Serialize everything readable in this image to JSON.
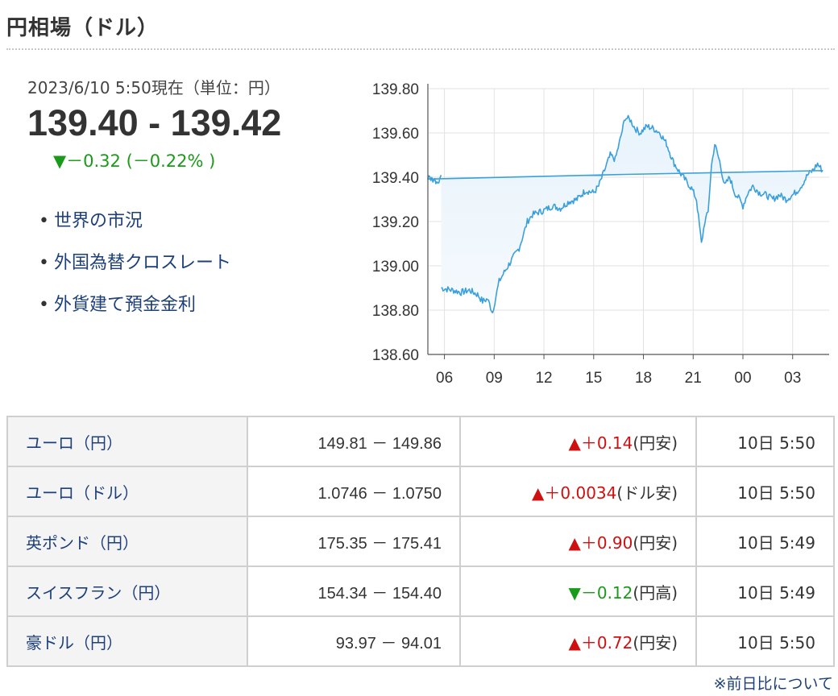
{
  "header": {
    "title": "円相場（ドル）"
  },
  "quote": {
    "as_of": "2023/6/10 5:50現在（単位：円）",
    "price": "139.40 - 139.42",
    "change": "▼－0.32 (－0.22% )",
    "change_color": "#1a9a1a"
  },
  "links": [
    {
      "label": "世界の市況"
    },
    {
      "label": "外国為替クロスレート"
    },
    {
      "label": "外貨建て預金金利"
    }
  ],
  "chart_data": {
    "type": "area",
    "title": "",
    "xlabel": "",
    "ylabel": "",
    "ylim": [
      138.6,
      139.8
    ],
    "yticks": [
      "139.80",
      "139.60",
      "139.40",
      "139.20",
      "139.00",
      "138.80",
      "138.60"
    ],
    "xticks": [
      "06",
      "09",
      "12",
      "15",
      "18",
      "21",
      "00",
      "03"
    ],
    "grid": true,
    "line_color": "#3aa0dc",
    "series": [
      {
        "x": [
          5.8,
          6.5,
          7.0,
          7.5,
          8.0,
          8.3,
          8.6,
          8.9,
          9.1,
          9.3,
          9.6,
          10.0,
          10.5,
          10.8,
          11.0,
          11.3,
          11.6,
          12.0,
          12.5,
          13.0,
          13.5,
          14.0,
          14.5,
          15.0,
          15.3,
          15.6,
          16.0,
          16.3,
          16.6,
          16.9,
          17.2,
          17.5,
          17.8,
          18.2,
          18.6,
          19.0,
          19.4,
          19.8,
          20.2,
          20.6,
          20.9,
          21.2,
          21.5,
          21.7,
          21.9,
          22.1,
          22.3,
          22.6,
          22.9,
          23.2,
          23.5,
          23.8,
          0.0,
          0.3,
          0.6,
          1.0,
          1.4,
          1.8,
          2.2,
          2.6,
          3.0,
          3.3,
          3.6,
          3.9,
          4.2,
          4.5,
          4.8,
          5.0,
          5.3,
          5.6,
          5.8
        ],
        "y": [
          138.9,
          138.89,
          138.88,
          138.89,
          138.87,
          138.84,
          138.85,
          138.79,
          138.86,
          138.93,
          138.97,
          139.02,
          139.08,
          139.15,
          139.2,
          139.23,
          139.24,
          139.25,
          139.27,
          139.26,
          139.29,
          139.3,
          139.34,
          139.33,
          139.36,
          139.42,
          139.5,
          139.48,
          139.57,
          139.67,
          139.66,
          139.62,
          139.6,
          139.63,
          139.62,
          139.6,
          139.55,
          139.47,
          139.42,
          139.38,
          139.35,
          139.3,
          139.1,
          139.2,
          139.24,
          139.45,
          139.55,
          139.47,
          139.36,
          139.4,
          139.33,
          139.3,
          139.27,
          139.33,
          139.36,
          139.33,
          139.32,
          139.3,
          139.32,
          139.3,
          139.32,
          139.34,
          139.37,
          139.41,
          139.43,
          139.46,
          139.43,
          139.4,
          139.39,
          139.38,
          139.41
        ]
      }
    ]
  },
  "rates": [
    {
      "name": "ユーロ（円）",
      "bidask": "149.81 － 149.86",
      "direction": "up",
      "change": "▲＋0.14",
      "note": "(円安)",
      "time": "10日 5:50"
    },
    {
      "name": "ユーロ（ドル）",
      "bidask": "1.0746 － 1.0750",
      "direction": "up",
      "change": "▲＋0.0034",
      "note": "(ドル安)",
      "time": "10日 5:50"
    },
    {
      "name": "英ポンド（円）",
      "bidask": "175.35 － 175.41",
      "direction": "up",
      "change": "▲＋0.90",
      "note": "(円安)",
      "time": "10日 5:49"
    },
    {
      "name": "スイスフラン（円）",
      "bidask": "154.34 － 154.40",
      "direction": "down",
      "change": "▼－0.12",
      "note": "(円高)",
      "time": "10日 5:49"
    },
    {
      "name": "豪ドル（円）",
      "bidask": "93.97 － 94.01",
      "direction": "up",
      "change": "▲＋0.72",
      "note": "(円安)",
      "time": "10日 5:50"
    }
  ],
  "footer": {
    "note": "※前日比について"
  }
}
